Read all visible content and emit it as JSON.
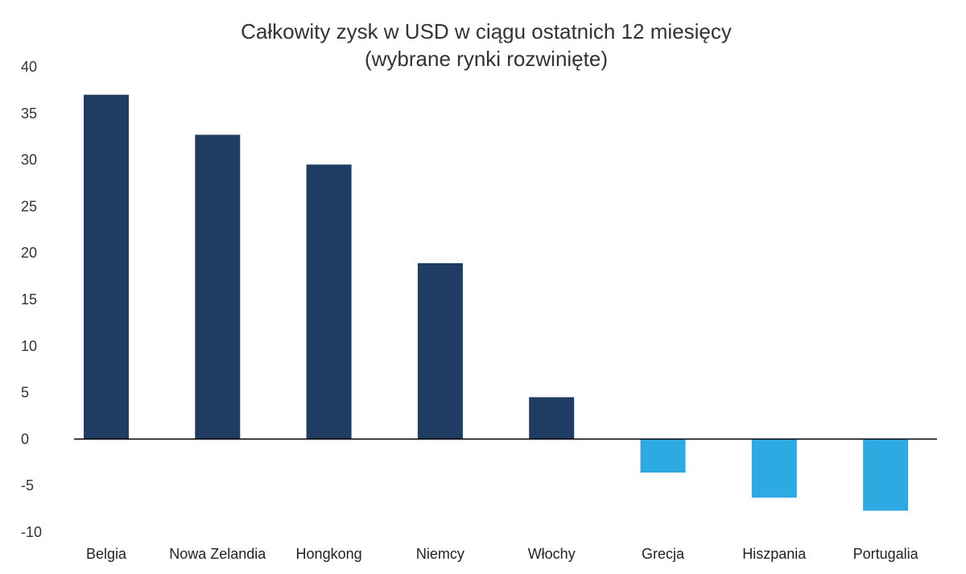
{
  "chart_data": {
    "type": "bar",
    "title": "Całkowity zysk w USD w ciągu ostatnich 12 miesięcy",
    "subtitle": "(wybrane rynki rozwinięte)",
    "categories": [
      "Belgia",
      "Nowa Zelandia",
      "Hongkong",
      "Niemcy",
      "Włochy",
      "Grecja",
      "Hiszpania",
      "Portugalia"
    ],
    "values": [
      37.0,
      32.7,
      29.5,
      18.9,
      4.5,
      -3.6,
      -6.3,
      -7.7
    ],
    "ylim": [
      -10,
      40
    ],
    "yticks": [
      40,
      35,
      30,
      25,
      20,
      15,
      10,
      5,
      0,
      -5,
      -10
    ],
    "grid": false,
    "legend": "none",
    "colors": {
      "positive": "#1f3c63",
      "negative": "#2daae1",
      "axis": "#000000"
    }
  }
}
